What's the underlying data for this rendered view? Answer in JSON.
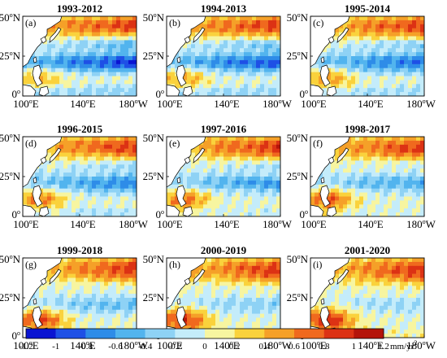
{
  "figure": {
    "panels": [
      {
        "id": "a",
        "label": "(a)",
        "period": "1993-2012",
        "pattern": 0
      },
      {
        "id": "b",
        "label": "(b)",
        "period": "1994-2013",
        "pattern": 1
      },
      {
        "id": "c",
        "label": "(c)",
        "period": "1995-2014",
        "pattern": 2
      },
      {
        "id": "d",
        "label": "(d)",
        "period": "1996-2015",
        "pattern": 3
      },
      {
        "id": "e",
        "label": "(e)",
        "period": "1997-2016",
        "pattern": 4
      },
      {
        "id": "f",
        "label": "(f)",
        "period": "1998-2017",
        "pattern": 5
      },
      {
        "id": "g",
        "label": "(g)",
        "period": "1999-2018",
        "pattern": 6
      },
      {
        "id": "h",
        "label": "(h)",
        "period": "2000-2019",
        "pattern": 7
      },
      {
        "id": "i",
        "label": "(i)",
        "period": "2001-2020",
        "pattern": 8
      }
    ],
    "lat_ticks": [
      {
        "value": "50",
        "sup": "o",
        "hemi": "N"
      },
      {
        "value": "25",
        "sup": "o",
        "hemi": "N"
      },
      {
        "value": "0",
        "sup": "o",
        "hemi": ""
      }
    ],
    "lon_ticks": [
      {
        "value": "100",
        "sup": "o",
        "hemi": "E"
      },
      {
        "value": "140",
        "sup": "o",
        "hemi": "E"
      },
      {
        "value": "180",
        "sup": "o",
        "hemi": "W"
      }
    ],
    "colorbar": {
      "labels": [
        "-1.2",
        "-1",
        "-0.8",
        "-0.6",
        "-0.4",
        "-0.2",
        "0",
        "0.2",
        "0.4",
        "0.6",
        "0.8",
        "1",
        "1.2"
      ],
      "unit": "mm/yr",
      "unit_sup": "2",
      "colors": [
        "#0a14d2",
        "#1e50e6",
        "#2e8ce8",
        "#52b4ee",
        "#8ed2f5",
        "#c4ecfa",
        "#f7f5a0",
        "#fad23c",
        "#f5a028",
        "#f0691e",
        "#dc3214",
        "#b4140a"
      ]
    },
    "land_color": "#ffffff"
  }
}
